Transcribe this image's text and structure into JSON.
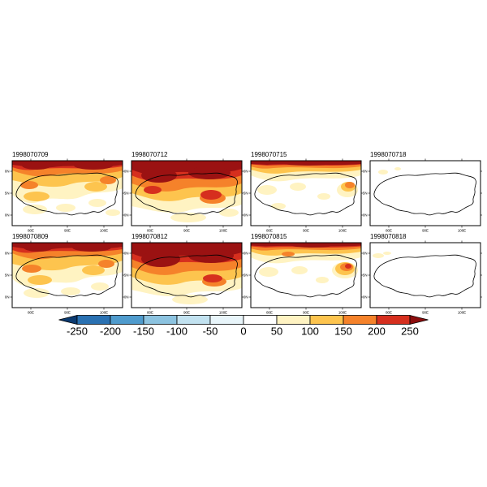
{
  "figure": {
    "panels": [
      {
        "label": "1998070709",
        "pattern": "p1"
      },
      {
        "label": "1998070712",
        "pattern": "p2"
      },
      {
        "label": "1998070715",
        "pattern": "p3"
      },
      {
        "label": "1998070718",
        "pattern": "p4"
      },
      {
        "label": "1998070809",
        "pattern": "p5"
      },
      {
        "label": "1998070812",
        "pattern": "p6"
      },
      {
        "label": "1998070815",
        "pattern": "p7"
      },
      {
        "label": "1998070818",
        "pattern": "p8"
      }
    ],
    "y_ticks": [
      "40N",
      "35N",
      "30N"
    ],
    "x_ticks": [
      "80E",
      "90E",
      "100E"
    ]
  },
  "palette": {
    "y1": "#fff3c2",
    "y2": "#fdc44e",
    "o": "#f5822a",
    "r": "#d62f1e",
    "dr": "#9b1212"
  },
  "colorbar": {
    "tick_labels": [
      "-250",
      "-200",
      "-150",
      "-100",
      "-50",
      "0",
      "50",
      "100",
      "150",
      "200",
      "250"
    ],
    "segment_colors": [
      "#2a71b2",
      "#4f9bcd",
      "#8cc3e0",
      "#c2e2f0",
      "#e8f5fa",
      "#ffffff",
      "#fff3c2",
      "#fdc44e",
      "#f5822a",
      "#d62f1e"
    ],
    "arrow_left_color": "#0b3a70",
    "arrow_right_color": "#8c0d0d"
  },
  "chart_data": {
    "type": "heatmap",
    "title": "",
    "layout": {
      "rows": 2,
      "cols": 4,
      "legend_position": "bottom"
    },
    "panel_times": [
      "1998070709",
      "1998070712",
      "1998070715",
      "1998070718",
      "1998070809",
      "1998070812",
      "1998070815",
      "1998070818"
    ],
    "panel_intensity": [
      "heavy positive band along northern plateau, widespread 50-250+ values",
      "most intense panel, dark-red maximum covering upper half",
      "narrow intense band along north edge, patchy yellow elsewhere",
      "near zero everywhere, small positive patch in northwest",
      "heavy positive band along northern plateau, widespread 50-250+ values",
      "most intense panel, dark-red maximum covering upper half",
      "intense north band with orange cell on east side",
      "near zero everywhere, small positive patch at west edge"
    ],
    "colorbar_levels": [
      -250,
      -200,
      -150,
      -100,
      -50,
      0,
      50,
      100,
      150,
      200,
      250
    ],
    "colorbar_colors": [
      "#0b3a70",
      "#2a71b2",
      "#4f9bcd",
      "#8cc3e0",
      "#c2e2f0",
      "#e8f5fa",
      "#ffffff",
      "#fff3c2",
      "#fdc44e",
      "#f5822a",
      "#d62f1e",
      "#8c0d0d"
    ],
    "x_tick_labels": [
      "80E",
      "90E",
      "100E"
    ],
    "y_tick_labels": [
      "40N",
      "35N",
      "30N"
    ]
  }
}
